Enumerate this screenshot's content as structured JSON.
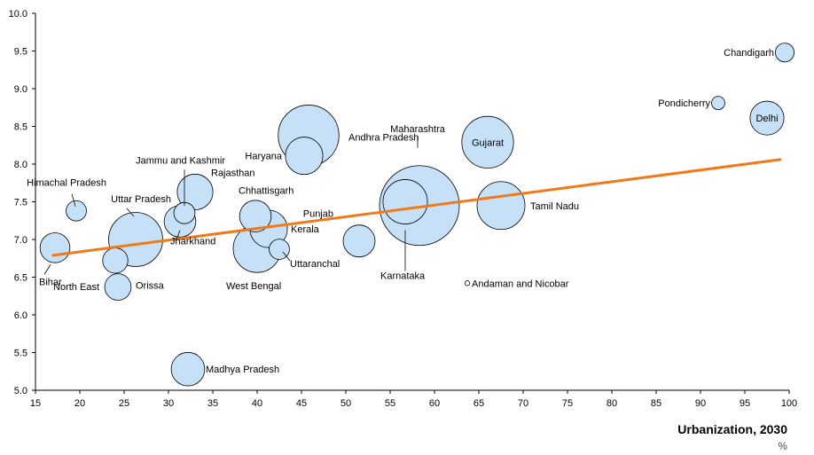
{
  "chart_data": {
    "type": "scatter",
    "title": "",
    "xlabel": "Urbanization, 2030",
    "xunit": "%",
    "ylabel": "",
    "xlim": [
      15,
      100
    ],
    "ylim": [
      5.0,
      10.0
    ],
    "xticks": [
      15,
      20,
      25,
      30,
      35,
      40,
      45,
      50,
      55,
      60,
      65,
      70,
      75,
      80,
      85,
      90,
      95,
      100
    ],
    "yticks": [
      5.0,
      5.5,
      6.0,
      6.5,
      7.0,
      7.5,
      8.0,
      8.5,
      9.0,
      9.5,
      10.0
    ],
    "grid": false,
    "bubble_color": "#c6e0f7",
    "trend_color": "#f07a1a",
    "trendline": {
      "x": [
        17,
        99
      ],
      "y": [
        6.79,
        8.06
      ]
    },
    "points": [
      {
        "name": "Chandigarh",
        "x": 99.5,
        "y": 9.48,
        "size": 0.3
      },
      {
        "name": "Pondicherry",
        "x": 92.0,
        "y": 8.81,
        "size": 0.15
      },
      {
        "name": "Delhi",
        "x": 97.5,
        "y": 8.61,
        "size": 1.8
      },
      {
        "name": "Gujarat",
        "x": 66.0,
        "y": 8.29,
        "size": 4.2
      },
      {
        "name": "Andhra Pradesh",
        "x": 45.8,
        "y": 8.38,
        "size": 5.8
      },
      {
        "name": "Haryana",
        "x": 45.3,
        "y": 8.11,
        "size": 2.2
      },
      {
        "name": "Maharashtra",
        "x": 58.3,
        "y": 7.45,
        "size": 10.0
      },
      {
        "name": "Karnataka",
        "x": 56.7,
        "y": 7.5,
        "size": 3.1
      },
      {
        "name": "Tamil Nadu",
        "x": 67.5,
        "y": 7.45,
        "size": 3.6
      },
      {
        "name": "Rajasthan",
        "x": 33.0,
        "y": 7.63,
        "size": 2.0
      },
      {
        "name": "Chhattisgarh",
        "x": 39.8,
        "y": 7.31,
        "size": 0.85
      },
      {
        "name": "Kerala",
        "x": 41.3,
        "y": 7.14,
        "size": 2.2
      },
      {
        "name": "Uttaranchal",
        "x": 42.5,
        "y": 6.87,
        "size": 0.35
      },
      {
        "name": "West Bengal",
        "x": 40.0,
        "y": 6.88,
        "size": 3.6
      },
      {
        "name": "Punjab",
        "x": 51.5,
        "y": 6.98,
        "size": 1.6
      },
      {
        "name": "Andaman and Nicobar",
        "x": 63.7,
        "y": 6.42,
        "size": 0.02
      },
      {
        "name": "Jammu and Kashmir",
        "x": 31.8,
        "y": 7.35,
        "size": 0.38
      },
      {
        "name": "Himachal Pradesh",
        "x": 19.6,
        "y": 7.38,
        "size": 0.35
      },
      {
        "name": "Uttar Pradesh",
        "x": 26.3,
        "y": 7.0,
        "size": 4.6
      },
      {
        "name": "Jharkhand",
        "x": 31.3,
        "y": 7.24,
        "size": 0.85
      },
      {
        "name": "Bihar",
        "x": 17.2,
        "y": 6.89,
        "size": 1.4
      },
      {
        "name": "North East",
        "x": 24.0,
        "y": 6.72,
        "size": 1.0
      },
      {
        "name": "Orissa",
        "x": 24.3,
        "y": 6.37,
        "size": 1.1
      },
      {
        "name": "Madhya Pradesh",
        "x": 32.2,
        "y": 5.28,
        "size": 0.95
      }
    ]
  }
}
